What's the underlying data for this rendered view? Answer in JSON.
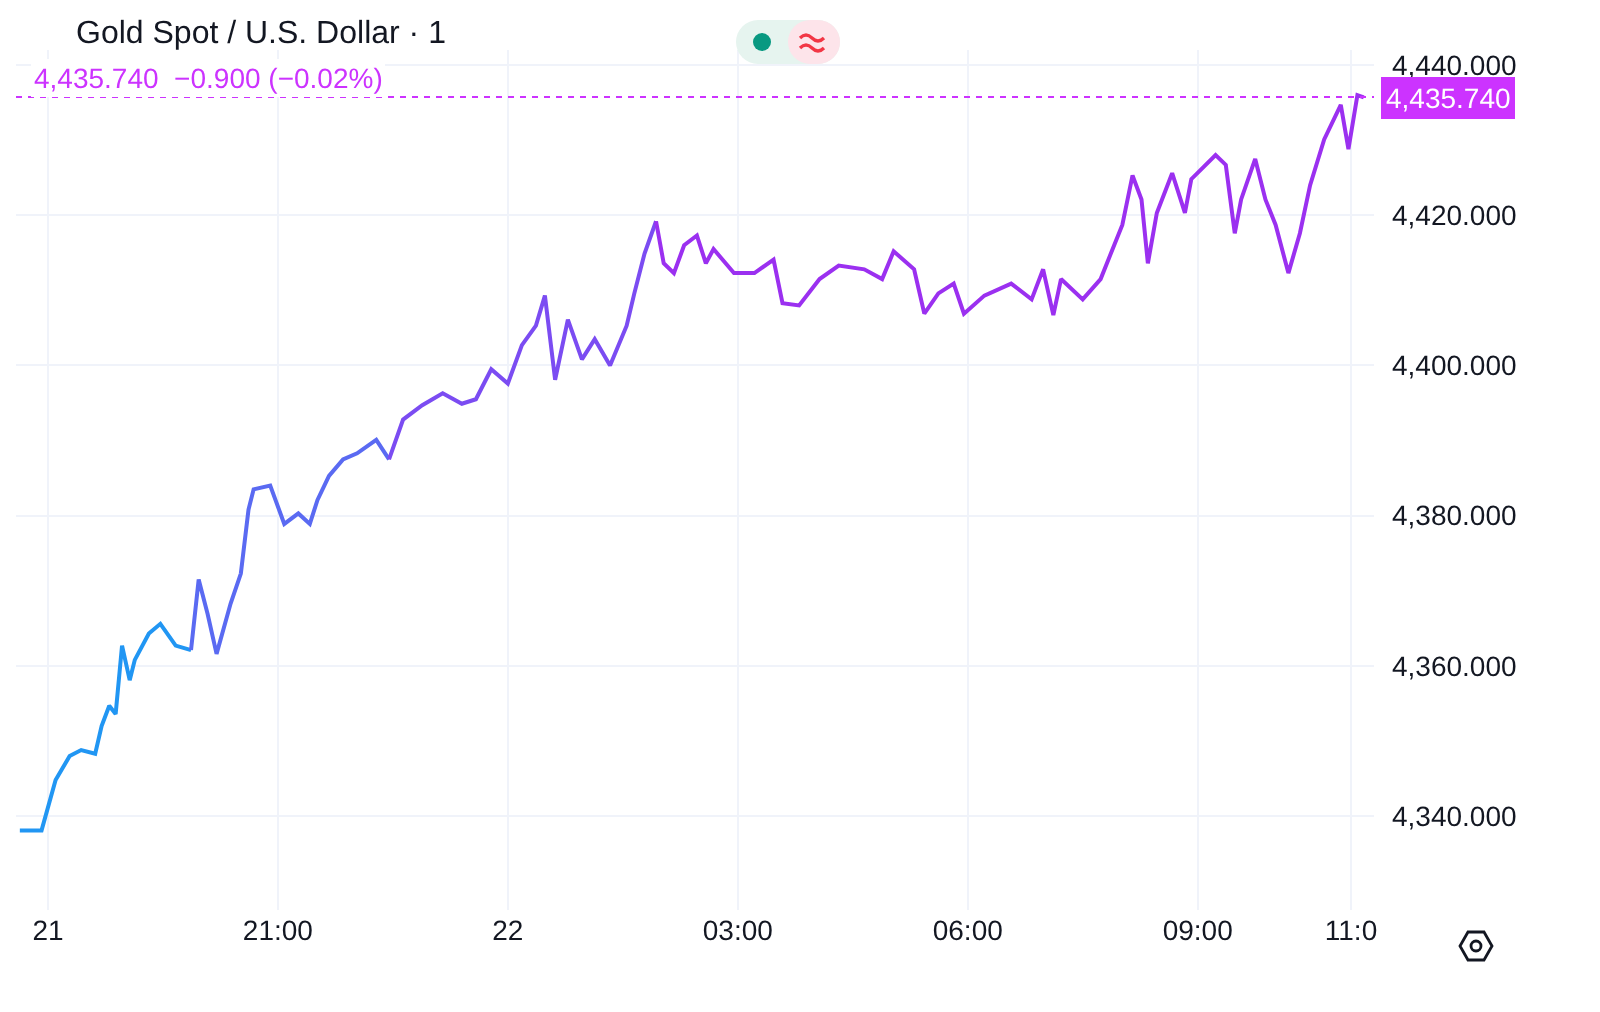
{
  "chart_data": {
    "type": "line",
    "title": "Gold Spot / U.S. Dollar · 1",
    "annotations": [
      "4,435.740  −0.900 (−0.02%)"
    ],
    "xlim": [
      "--12-21T17:35",
      "--12-22T11:18"
    ],
    "ylim": [
      4327.5,
      4442
    ],
    "xticks": [
      {
        "value": "--12-21T18:00",
        "label": "21"
      },
      {
        "value": "--12-21T21:00",
        "label": "21:00"
      },
      {
        "value": "--12-22T00:00",
        "label": "22"
      },
      {
        "value": "--12-22T03:00",
        "label": "03:00"
      },
      {
        "value": "--12-22T06:00",
        "label": "06:00"
      },
      {
        "value": "--12-22T09:00",
        "label": "09:00"
      },
      {
        "value": "--12-22T11:00",
        "label": "11:0"
      }
    ],
    "yticks": [
      {
        "value": 4340,
        "label": "4,340.000"
      },
      {
        "value": 4360,
        "label": "4,360.000"
      },
      {
        "value": 4380,
        "label": "4,380.000"
      },
      {
        "value": 4400,
        "label": "4,400.000"
      },
      {
        "value": 4420,
        "label": "4,420.000"
      },
      {
        "value": 4440,
        "label": "4,440.000"
      }
    ],
    "grid": true,
    "marker": "none",
    "line_style": "solid",
    "ref_lines": [
      {
        "axis": "y",
        "value": 4435.74,
        "label": "4,435.740",
        "color": "#cc33ff",
        "line_style": "dotted"
      }
    ],
    "series": [
      {
        "color": "#2196f3",
        "x": [
          "--12-21T17:38",
          "--12-21T17:55",
          "--12-21T18:06",
          "--12-21T18:17",
          "--12-21T18:26",
          "--12-21T18:37",
          "--12-21T18:42",
          "--12-21T18:48",
          "--12-21T18:53",
          "--12-21T18:58",
          "--12-21T19:04",
          "--12-21T19:08",
          "--12-21T19:19",
          "--12-21T19:28",
          "--12-21T19:40",
          "--12-21T19:52"
        ],
        "values": [
          4338.1,
          4338.1,
          4344.8,
          4348,
          4348.8,
          4348.3,
          4352,
          4354.7,
          4353.6,
          4362.7,
          4358.1,
          4360.8,
          4364.3,
          4365.6,
          4362.7,
          4362.1
        ]
      },
      {
        "color": "#5a6af2",
        "x": [
          "--12-21T19:52",
          "--12-21T19:58",
          "--12-21T20:05",
          "--12-21T20:12",
          "--12-21T20:23",
          "--12-21T20:31",
          "--12-21T20:37",
          "--12-21T20:41",
          "--12-21T20:54",
          "--12-21T21:05",
          "--12-21T21:16",
          "--12-21T21:25",
          "--12-21T21:31",
          "--12-21T21:40",
          "--12-21T21:51",
          "--12-21T22:02",
          "--12-21T22:17",
          "--12-21T22:27"
        ],
        "values": [
          4362.1,
          4371.5,
          4366.9,
          4361.6,
          4368.3,
          4372.3,
          4380.8,
          4383.5,
          4384,
          4378.9,
          4380.3,
          4378.9,
          4382.1,
          4385.3,
          4387.5,
          4388.3,
          4390.1,
          4387.5
        ]
      },
      {
        "color": "#7b4cf2",
        "x": [
          "--12-21T22:27",
          "--12-21T22:38",
          "--12-21T22:53",
          "--12-21T23:09",
          "--12-21T23:24",
          "--12-21T23:35",
          "--12-21T23:47",
          "--12-22T00:00",
          "--12-22T00:11",
          "--12-22T00:22",
          "--12-22T00:29",
          "--12-22T00:37",
          "--12-22T00:47",
          "--12-22T00:58",
          "--12-22T01:08",
          "--12-22T01:20",
          "--12-22T01:33",
          "--12-22T01:39",
          "--12-22T01:47",
          "--12-22T01:56"
        ],
        "values": [
          4387.5,
          4392.8,
          4394.7,
          4396.3,
          4394.9,
          4395.5,
          4399.5,
          4397.6,
          4402.7,
          4405.3,
          4409.3,
          4398.1,
          4406.1,
          4400.8,
          4403.5,
          4400,
          4405.3,
          4409.6,
          4414.9,
          4419.2
        ]
      },
      {
        "color": "#9b30f0",
        "x": [
          "--12-22T01:56",
          "--12-22T02:02",
          "--12-22T02:10",
          "--12-22T02:18",
          "--12-22T02:28",
          "--12-22T02:35",
          "--12-22T02:41",
          "--12-22T02:57",
          "--12-22T03:13",
          "--12-22T03:28",
          "--12-22T03:35",
          "--12-22T03:48",
          "--12-22T04:04",
          "--12-22T04:19",
          "--12-22T04:39",
          "--12-22T04:53",
          "--12-22T05:02",
          "--12-22T05:18",
          "--12-22T05:26",
          "--12-22T05:37",
          "--12-22T05:49",
          "--12-22T05:57",
          "--12-22T06:13",
          "--12-22T06:34",
          "--12-22T06:50",
          "--12-22T06:59",
          "--12-22T07:07",
          "--12-22T07:13",
          "--12-22T07:30",
          "--12-22T07:44",
          "--12-22T07:52",
          "--12-22T08:01",
          "--12-22T08:09",
          "--12-22T08:16",
          "--12-22T08:21",
          "--12-22T08:28",
          "--12-22T08:40",
          "--12-22T08:50",
          "--12-22T08:55",
          "--12-22T09:14",
          "--12-22T09:22",
          "--12-22T09:29",
          "--12-22T09:34",
          "--12-22T09:45",
          "--12-22T09:53",
          "--12-22T10:01",
          "--12-22T10:11",
          "--12-22T10:20",
          "--12-22T10:28",
          "--12-22T10:39",
          "--12-22T10:52",
          "--12-22T10:58",
          "--12-22T11:05",
          "--12-22T11:10"
        ],
        "values": [
          4419.2,
          4413.6,
          4412.3,
          4416,
          4417.3,
          4413.6,
          4415.5,
          4412.3,
          4412.3,
          4414.1,
          4408.3,
          4408,
          4411.5,
          4413.3,
          4412.8,
          4411.5,
          4415.2,
          4412.8,
          4406.9,
          4409.6,
          4410.9,
          4406.9,
          4409.3,
          4410.9,
          4408.8,
          4412.8,
          4406.7,
          4411.5,
          4408.8,
          4411.5,
          4414.9,
          4418.7,
          4425.3,
          4422.1,
          4413.6,
          4420.3,
          4425.6,
          4420.3,
          4424.8,
          4428,
          4426.7,
          4417.6,
          4422.1,
          4427.5,
          4422.1,
          4418.7,
          4412.3,
          4417.6,
          4424,
          4430.1,
          4434.7,
          4428.8,
          4436,
          4435.7
        ]
      }
    ]
  }
}
